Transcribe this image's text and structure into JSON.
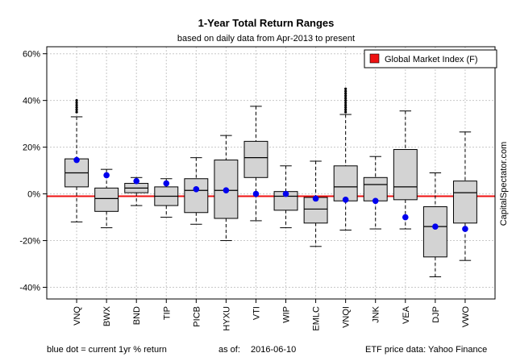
{
  "chart_data": {
    "type": "boxplot",
    "title": "1-Year Total Return Ranges",
    "subtitle": "based on daily data from Apr-2013 to present",
    "ylim": [
      -45,
      63
    ],
    "yticks": [
      "-40%",
      "-20%",
      "0%",
      "20%",
      "40%",
      "60%"
    ],
    "ytick_values": [
      -40,
      -20,
      0,
      20,
      40,
      60
    ],
    "grid": true,
    "legend_position": "top-right",
    "legend_entries": [
      {
        "label": "Global Market Index (F)",
        "color": "#ee1111"
      }
    ],
    "reference_line": {
      "label": "Global Market Index (F)",
      "value": -1
    },
    "categories": [
      "VNQ",
      "BWX",
      "BND",
      "TIP",
      "PICB",
      "HYXU",
      "VTI",
      "WIP",
      "EMLC",
      "VNQI",
      "JNK",
      "VEA",
      "DJP",
      "VWO"
    ],
    "series": [
      {
        "values": [
          {
            "whisker_low": -12,
            "q1": 3,
            "median": 9,
            "q3": 15,
            "whisker_high": 33,
            "outliers": [
              35,
              36,
              37,
              38,
              39,
              40
            ],
            "current": 14.5
          },
          {
            "whisker_low": -14.5,
            "q1": -7.5,
            "median": -2,
            "q3": 2.5,
            "whisker_high": 10.5,
            "outliers": [],
            "current": 8
          },
          {
            "whisker_low": -5,
            "q1": 0.5,
            "median": 2.5,
            "q3": 4.5,
            "whisker_high": 7,
            "outliers": [],
            "current": 5.5
          },
          {
            "whisker_low": -10,
            "q1": -5,
            "median": -1,
            "q3": 3,
            "whisker_high": 6.5,
            "outliers": [],
            "current": 4.5
          },
          {
            "whisker_low": -13,
            "q1": -8,
            "median": 1.5,
            "q3": 6.5,
            "whisker_high": 15.5,
            "outliers": [],
            "current": 2
          },
          {
            "whisker_low": -20,
            "q1": -10.5,
            "median": 1.5,
            "q3": 14.5,
            "whisker_high": 25,
            "outliers": [],
            "current": 1.5
          },
          {
            "whisker_low": -11.5,
            "q1": 7,
            "median": 15.5,
            "q3": 22.5,
            "whisker_high": 37.5,
            "outliers": [],
            "current": 0
          },
          {
            "whisker_low": -14.5,
            "q1": -7,
            "median": -1,
            "q3": 1,
            "whisker_high": 12,
            "outliers": [],
            "current": 0
          },
          {
            "whisker_low": -22.5,
            "q1": -12.5,
            "median": -6.5,
            "q3": -1.5,
            "whisker_high": 14,
            "outliers": [],
            "current": -2
          },
          {
            "whisker_low": -15.5,
            "q1": -3,
            "median": 3,
            "q3": 12,
            "whisker_high": 34,
            "outliers": [
              35,
              36,
              37,
              38,
              39,
              40,
              41,
              42,
              43,
              44,
              45
            ],
            "current": -2.5
          },
          {
            "whisker_low": -15,
            "q1": -3,
            "median": 4,
            "q3": 7,
            "whisker_high": 16,
            "outliers": [],
            "current": -3
          },
          {
            "whisker_low": -15,
            "q1": -2.5,
            "median": 3,
            "q3": 19,
            "whisker_high": 35.5,
            "outliers": [],
            "current": -10
          },
          {
            "whisker_low": -35.5,
            "q1": -27,
            "median": -14,
            "q3": -5.5,
            "whisker_high": 9,
            "outliers": [],
            "current": -14
          },
          {
            "whisker_low": -28.5,
            "q1": -12.5,
            "median": 0.5,
            "q3": 5.5,
            "whisker_high": 26.5,
            "outliers": [],
            "current": -15
          }
        ]
      }
    ]
  },
  "footer": {
    "left": "blue dot = current 1yr % return",
    "asof_label": "as of:",
    "date": "2016-06-10",
    "source": "ETF price data: Yahoo Finance"
  },
  "watermark": "CapitalSpectator.com",
  "colors": {
    "box_fill": "#d3d3d3",
    "current_dot": "#0000ee",
    "reference_line": "#ee1111",
    "grid": "#c8c8c8"
  }
}
